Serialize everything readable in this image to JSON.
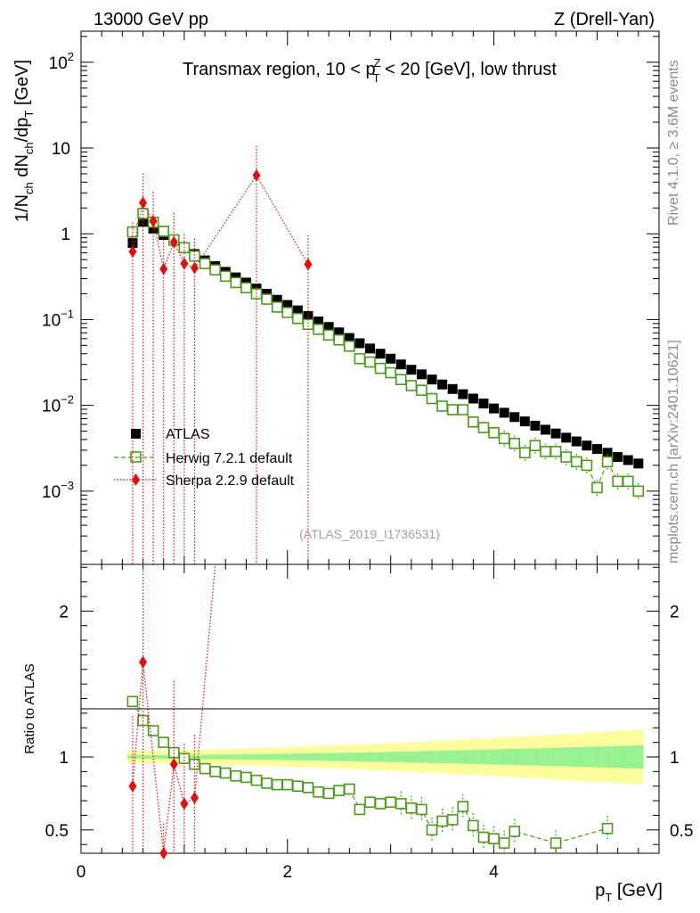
{
  "header": {
    "left": "13000 GeV pp",
    "right": "Z (Drell-Yan)"
  },
  "side": {
    "rivet": "Rivet 4.1.0, ≥ 3.6M events",
    "mcplots": "mcplots.cern.ch [arXiv:2401.10621]"
  },
  "colors": {
    "atlas": "#000000",
    "herwig": "#4a9a1a",
    "sherpa": "#e01010",
    "band_inner": "#99f291",
    "band_outer": "#fdfd9e"
  },
  "chart_data": [
    {
      "type": "scatter",
      "name": "main",
      "title": "Transmax region, 10 < p_T^Z < 20 [GeV], low thrust",
      "title_parts": [
        "Transmax region, 10 < p",
        "Z",
        "T",
        " < 20 [GeV], low thrust"
      ],
      "ylabel": "1/N_ch dN_ch/dp_T [GeV]",
      "ylabel_parts": [
        "1/N",
        "ch",
        " dN",
        "ch",
        "/dp",
        "T",
        " [GeV]"
      ],
      "xlabel": "p_T [GeV]",
      "xlabel_parts": [
        "p",
        "T",
        " [GeV]"
      ],
      "yscale": "log",
      "xlim": [
        0,
        5.6
      ],
      "ylim": [
        0.00014,
        230
      ],
      "yticks": [
        {
          "v": 0.001,
          "base": "10",
          "exp": "−3"
        },
        {
          "v": 0.01,
          "base": "10",
          "exp": "−2"
        },
        {
          "v": 0.1,
          "base": "10",
          "exp": "−1"
        },
        {
          "v": 1,
          "base": "1",
          "exp": ""
        },
        {
          "v": 10,
          "base": "10",
          "exp": ""
        },
        {
          "v": 100,
          "base": "10",
          "exp": "2"
        }
      ],
      "watermark": "(ATLAS_2019_I1736531)",
      "legend": [
        "ATLAS",
        "Herwig 7.2.1 default",
        "Sherpa 2.2.9 default"
      ],
      "series": [
        {
          "name": "ATLAS",
          "x": [
            0.5,
            0.6,
            0.7,
            0.8,
            0.9,
            1.0,
            1.1,
            1.2,
            1.3,
            1.4,
            1.5,
            1.6,
            1.7,
            1.8,
            1.9,
            2.0,
            2.1,
            2.2,
            2.3,
            2.4,
            2.5,
            2.6,
            2.7,
            2.8,
            2.9,
            3.0,
            3.1,
            3.2,
            3.3,
            3.4,
            3.5,
            3.6,
            3.7,
            3.8,
            3.9,
            4.0,
            4.1,
            4.2,
            4.3,
            4.4,
            4.5,
            4.6,
            4.7,
            4.8,
            4.9,
            5.0,
            5.1,
            5.2,
            5.3,
            5.4
          ],
          "y": [
            0.78,
            1.38,
            1.15,
            0.97,
            0.83,
            0.69,
            0.58,
            0.49,
            0.42,
            0.36,
            0.31,
            0.27,
            0.23,
            0.2,
            0.17,
            0.148,
            0.128,
            0.11,
            0.095,
            0.082,
            0.071,
            0.061,
            0.053,
            0.046,
            0.04,
            0.035,
            0.03,
            0.026,
            0.023,
            0.02,
            0.0175,
            0.0155,
            0.0135,
            0.012,
            0.0105,
            0.0092,
            0.0082,
            0.0073,
            0.0065,
            0.0058,
            0.0052,
            0.0047,
            0.0042,
            0.0038,
            0.0034,
            0.0031,
            0.0028,
            0.0025,
            0.0023,
            0.0021
          ]
        },
        {
          "name": "Herwig 7.2.1 default",
          "x": [
            0.5,
            0.6,
            0.7,
            0.8,
            0.9,
            1.0,
            1.1,
            1.2,
            1.3,
            1.4,
            1.5,
            1.6,
            1.7,
            1.8,
            1.9,
            2.0,
            2.1,
            2.2,
            2.3,
            2.4,
            2.5,
            2.6,
            2.7,
            2.8,
            2.9,
            3.0,
            3.1,
            3.2,
            3.3,
            3.4,
            3.5,
            3.6,
            3.7,
            3.8,
            3.9,
            4.0,
            4.1,
            4.2,
            4.3,
            4.4,
            4.5,
            4.6,
            4.7,
            4.8,
            4.9,
            5.0,
            5.1,
            5.2,
            5.3,
            5.4
          ],
          "y": [
            1.05,
            1.72,
            1.36,
            1.07,
            0.85,
            0.69,
            0.55,
            0.45,
            0.38,
            0.32,
            0.27,
            0.235,
            0.2,
            0.173,
            0.14,
            0.121,
            0.103,
            0.088,
            0.077,
            0.066,
            0.058,
            0.049,
            0.035,
            0.032,
            0.027,
            0.024,
            0.02,
            0.017,
            0.015,
            0.012,
            0.0098,
            0.0089,
            0.0089,
            0.0064,
            0.0055,
            0.0048,
            0.0041,
            0.0036,
            0.0028,
            0.0034,
            0.0029,
            0.0029,
            0.0025,
            0.0022,
            0.002,
            0.0011,
            0.0022,
            0.0013,
            0.0013,
            0.001
          ]
        },
        {
          "name": "Sherpa 2.2.9 default",
          "x": [
            0.5,
            0.6,
            0.7,
            0.8,
            0.9,
            1.0,
            1.1,
            1.7,
            2.2
          ],
          "y": [
            0.62,
            2.3,
            1.4,
            0.39,
            0.8,
            0.45,
            0.4,
            4.8,
            0.44
          ]
        }
      ]
    },
    {
      "type": "scatter",
      "name": "ratio",
      "ylabel": "Ratio to ATLAS",
      "xlabel": "p_T [GeV]",
      "xlim": [
        0,
        5.6
      ],
      "ylim": [
        0.34,
        2.32
      ],
      "xticks": [
        {
          "v": 0,
          "label": "0"
        },
        {
          "v": 2,
          "label": "2"
        },
        {
          "v": 4,
          "label": "4"
        }
      ],
      "yticks": [
        {
          "v": 0.5,
          "label": "0.5"
        },
        {
          "v": 1,
          "label": "1"
        },
        {
          "v": 2,
          "label": "2"
        }
      ],
      "series": [
        {
          "name": "Herwig 7.2.1 default",
          "x": [
            0.5,
            0.6,
            0.7,
            0.8,
            0.9,
            1.0,
            1.1,
            1.2,
            1.3,
            1.4,
            1.5,
            1.6,
            1.7,
            1.8,
            1.9,
            2.0,
            2.1,
            2.2,
            2.3,
            2.4,
            2.5,
            2.6,
            2.7,
            2.8,
            2.9,
            3.0,
            3.1,
            3.2,
            3.3,
            3.4,
            3.5,
            3.6,
            3.7,
            3.8,
            3.9,
            4.0,
            4.1,
            4.2,
            4.6,
            5.1
          ],
          "y": [
            1.38,
            1.25,
            1.18,
            1.1,
            1.03,
            0.99,
            0.95,
            0.92,
            0.9,
            0.89,
            0.87,
            0.86,
            0.84,
            0.82,
            0.81,
            0.81,
            0.8,
            0.79,
            0.76,
            0.75,
            0.77,
            0.78,
            0.64,
            0.69,
            0.68,
            0.69,
            0.68,
            0.65,
            0.64,
            0.5,
            0.56,
            0.57,
            0.66,
            0.53,
            0.45,
            0.44,
            0.41,
            0.49,
            0.41,
            0.51
          ]
        },
        {
          "name": "Sherpa 2.2.9 default",
          "x": [
            0.5,
            0.6,
            0.8,
            0.9,
            1.0,
            1.1
          ],
          "y": [
            0.8,
            1.65,
            0.34,
            0.95,
            0.68,
            0.72
          ]
        }
      ]
    }
  ]
}
